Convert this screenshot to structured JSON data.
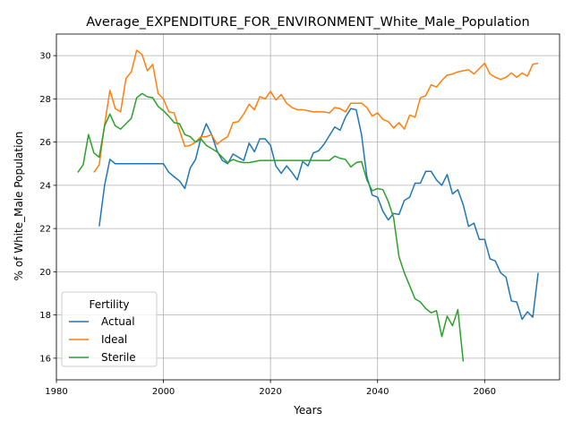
{
  "chart_data": {
    "type": "line",
    "title": "Average_EXPENDITURE_FOR_ENVIRONMENT_White_Male_Population",
    "xlabel": "Years",
    "ylabel": "% of White_Male Population",
    "xlim": [
      1980,
      2074
    ],
    "ylim": [
      15.0,
      31.0
    ],
    "xticks": [
      1980,
      2000,
      2020,
      2040,
      2060
    ],
    "yticks": [
      16,
      18,
      20,
      22,
      24,
      26,
      28,
      30
    ],
    "grid": true,
    "legend": {
      "title": "Fertility",
      "placement": "lower-left"
    },
    "series": [
      {
        "name": "Actual",
        "color": "#1f77b4",
        "x": [
          1988,
          1989,
          1990,
          1991,
          1992,
          1993,
          1994,
          1995,
          1996,
          1997,
          1998,
          1999,
          2000,
          2001,
          2002,
          2003,
          2004,
          2005,
          2006,
          2007,
          2008,
          2009,
          2010,
          2011,
          2012,
          2013,
          2014,
          2015,
          2016,
          2017,
          2018,
          2019,
          2020,
          2021,
          2022,
          2023,
          2024,
          2025,
          2026,
          2027,
          2028,
          2029,
          2030,
          2031,
          2032,
          2033,
          2034,
          2035,
          2036,
          2037,
          2038,
          2039,
          2040,
          2041,
          2042,
          2043,
          2044,
          2045,
          2046,
          2047,
          2048,
          2049,
          2050,
          2051,
          2052,
          2053,
          2054,
          2055,
          2056,
          2057,
          2058,
          2059,
          2060,
          2061,
          2062,
          2063,
          2064,
          2065,
          2066,
          2067,
          2068,
          2069,
          2070
        ],
        "y": [
          22.1,
          24.0,
          25.2,
          25.0,
          25.0,
          25.0,
          25.0,
          25.0,
          25.0,
          25.0,
          25.0,
          25.0,
          25.0,
          24.6,
          24.4,
          24.2,
          23.85,
          24.8,
          25.2,
          26.2,
          26.85,
          26.35,
          25.6,
          25.15,
          25.0,
          25.45,
          25.3,
          25.15,
          25.95,
          25.55,
          26.15,
          26.15,
          25.85,
          24.9,
          24.55,
          24.9,
          24.6,
          24.25,
          25.1,
          24.9,
          25.5,
          25.6,
          25.9,
          26.3,
          26.7,
          26.55,
          27.15,
          27.55,
          27.5,
          26.35,
          24.4,
          23.55,
          23.45,
          22.8,
          22.4,
          22.7,
          22.65,
          23.3,
          23.45,
          24.1,
          24.1,
          24.65,
          24.65,
          24.25,
          24.0,
          24.5,
          23.6,
          23.8,
          23.1,
          22.1,
          22.25,
          21.5,
          21.5,
          20.6,
          20.5,
          19.95,
          19.75,
          18.65,
          18.6,
          17.8,
          18.15,
          17.9,
          19.95
        ]
      },
      {
        "name": "Ideal",
        "color": "#ff7f0e",
        "x": [
          1987,
          1988,
          1989,
          1990,
          1991,
          1992,
          1993,
          1994,
          1995,
          1996,
          1997,
          1998,
          1999,
          2000,
          2001,
          2002,
          2003,
          2004,
          2005,
          2006,
          2007,
          2008,
          2009,
          2010,
          2011,
          2012,
          2013,
          2014,
          2015,
          2016,
          2017,
          2018,
          2019,
          2020,
          2021,
          2022,
          2023,
          2024,
          2025,
          2026,
          2027,
          2028,
          2029,
          2030,
          2031,
          2032,
          2033,
          2034,
          2035,
          2036,
          2037,
          2038,
          2039,
          2040,
          2041,
          2042,
          2043,
          2044,
          2045,
          2046,
          2047,
          2048,
          2049,
          2050,
          2051,
          2052,
          2053,
          2054,
          2055,
          2056,
          2057,
          2058,
          2059,
          2060,
          2061,
          2062,
          2063,
          2064,
          2065,
          2066,
          2067,
          2068,
          2069,
          2070
        ],
        "y": [
          24.6,
          24.95,
          26.8,
          28.4,
          27.55,
          27.4,
          28.95,
          29.25,
          30.25,
          30.05,
          29.3,
          29.6,
          28.25,
          28.0,
          27.4,
          27.35,
          26.55,
          25.8,
          25.85,
          26.0,
          26.25,
          26.25,
          26.35,
          25.9,
          26.1,
          26.25,
          26.9,
          26.95,
          27.3,
          27.75,
          27.5,
          28.1,
          28.0,
          28.35,
          27.95,
          28.2,
          27.8,
          27.6,
          27.5,
          27.5,
          27.45,
          27.4,
          27.4,
          27.4,
          27.35,
          27.6,
          27.55,
          27.4,
          27.8,
          27.8,
          27.8,
          27.6,
          27.2,
          27.35,
          27.05,
          26.95,
          26.65,
          26.9,
          26.6,
          27.25,
          27.15,
          28.05,
          28.15,
          28.65,
          28.55,
          28.85,
          29.1,
          29.15,
          29.25,
          29.3,
          29.35,
          29.15,
          29.4,
          29.65,
          29.15,
          29.0,
          28.9,
          29.0,
          29.2,
          29.0,
          29.2,
          29.05,
          29.6,
          29.65
        ]
      },
      {
        "name": "Sterile",
        "color": "#2ca02c",
        "x": [
          1984,
          1985,
          1986,
          1987,
          1988,
          1989,
          1990,
          1991,
          1992,
          1993,
          1994,
          1995,
          1996,
          1997,
          1998,
          1999,
          2000,
          2001,
          2002,
          2003,
          2004,
          2005,
          2006,
          2007,
          2008,
          2009,
          2010,
          2011,
          2012,
          2013,
          2014,
          2015,
          2016,
          2017,
          2018,
          2019,
          2020,
          2021,
          2022,
          2023,
          2024,
          2025,
          2026,
          2027,
          2028,
          2029,
          2030,
          2031,
          2032,
          2033,
          2034,
          2035,
          2036,
          2037,
          2038,
          2039,
          2040,
          2041,
          2042,
          2043,
          2044,
          2045,
          2046,
          2047,
          2048,
          2049,
          2050,
          2051,
          2052,
          2053,
          2054,
          2055,
          2056
        ],
        "y": [
          24.6,
          24.95,
          26.35,
          25.5,
          25.3,
          26.75,
          27.3,
          26.75,
          26.6,
          26.85,
          27.1,
          28.05,
          28.25,
          28.1,
          28.05,
          27.65,
          27.45,
          27.2,
          26.9,
          26.85,
          26.35,
          26.25,
          26.0,
          26.15,
          25.85,
          25.7,
          25.55,
          25.3,
          25.05,
          25.2,
          25.1,
          25.05,
          25.05,
          25.1,
          25.15,
          25.15,
          25.15,
          25.15,
          25.15,
          25.15,
          25.15,
          25.15,
          25.15,
          25.15,
          25.15,
          25.15,
          25.15,
          25.15,
          25.35,
          25.25,
          25.2,
          24.85,
          25.05,
          25.1,
          24.25,
          23.75,
          23.85,
          23.8,
          23.25,
          22.5,
          20.7,
          19.95,
          19.35,
          18.75,
          18.6,
          18.3,
          18.1,
          18.2,
          17.0,
          17.95,
          17.5,
          18.25,
          15.85
        ]
      }
    ]
  }
}
